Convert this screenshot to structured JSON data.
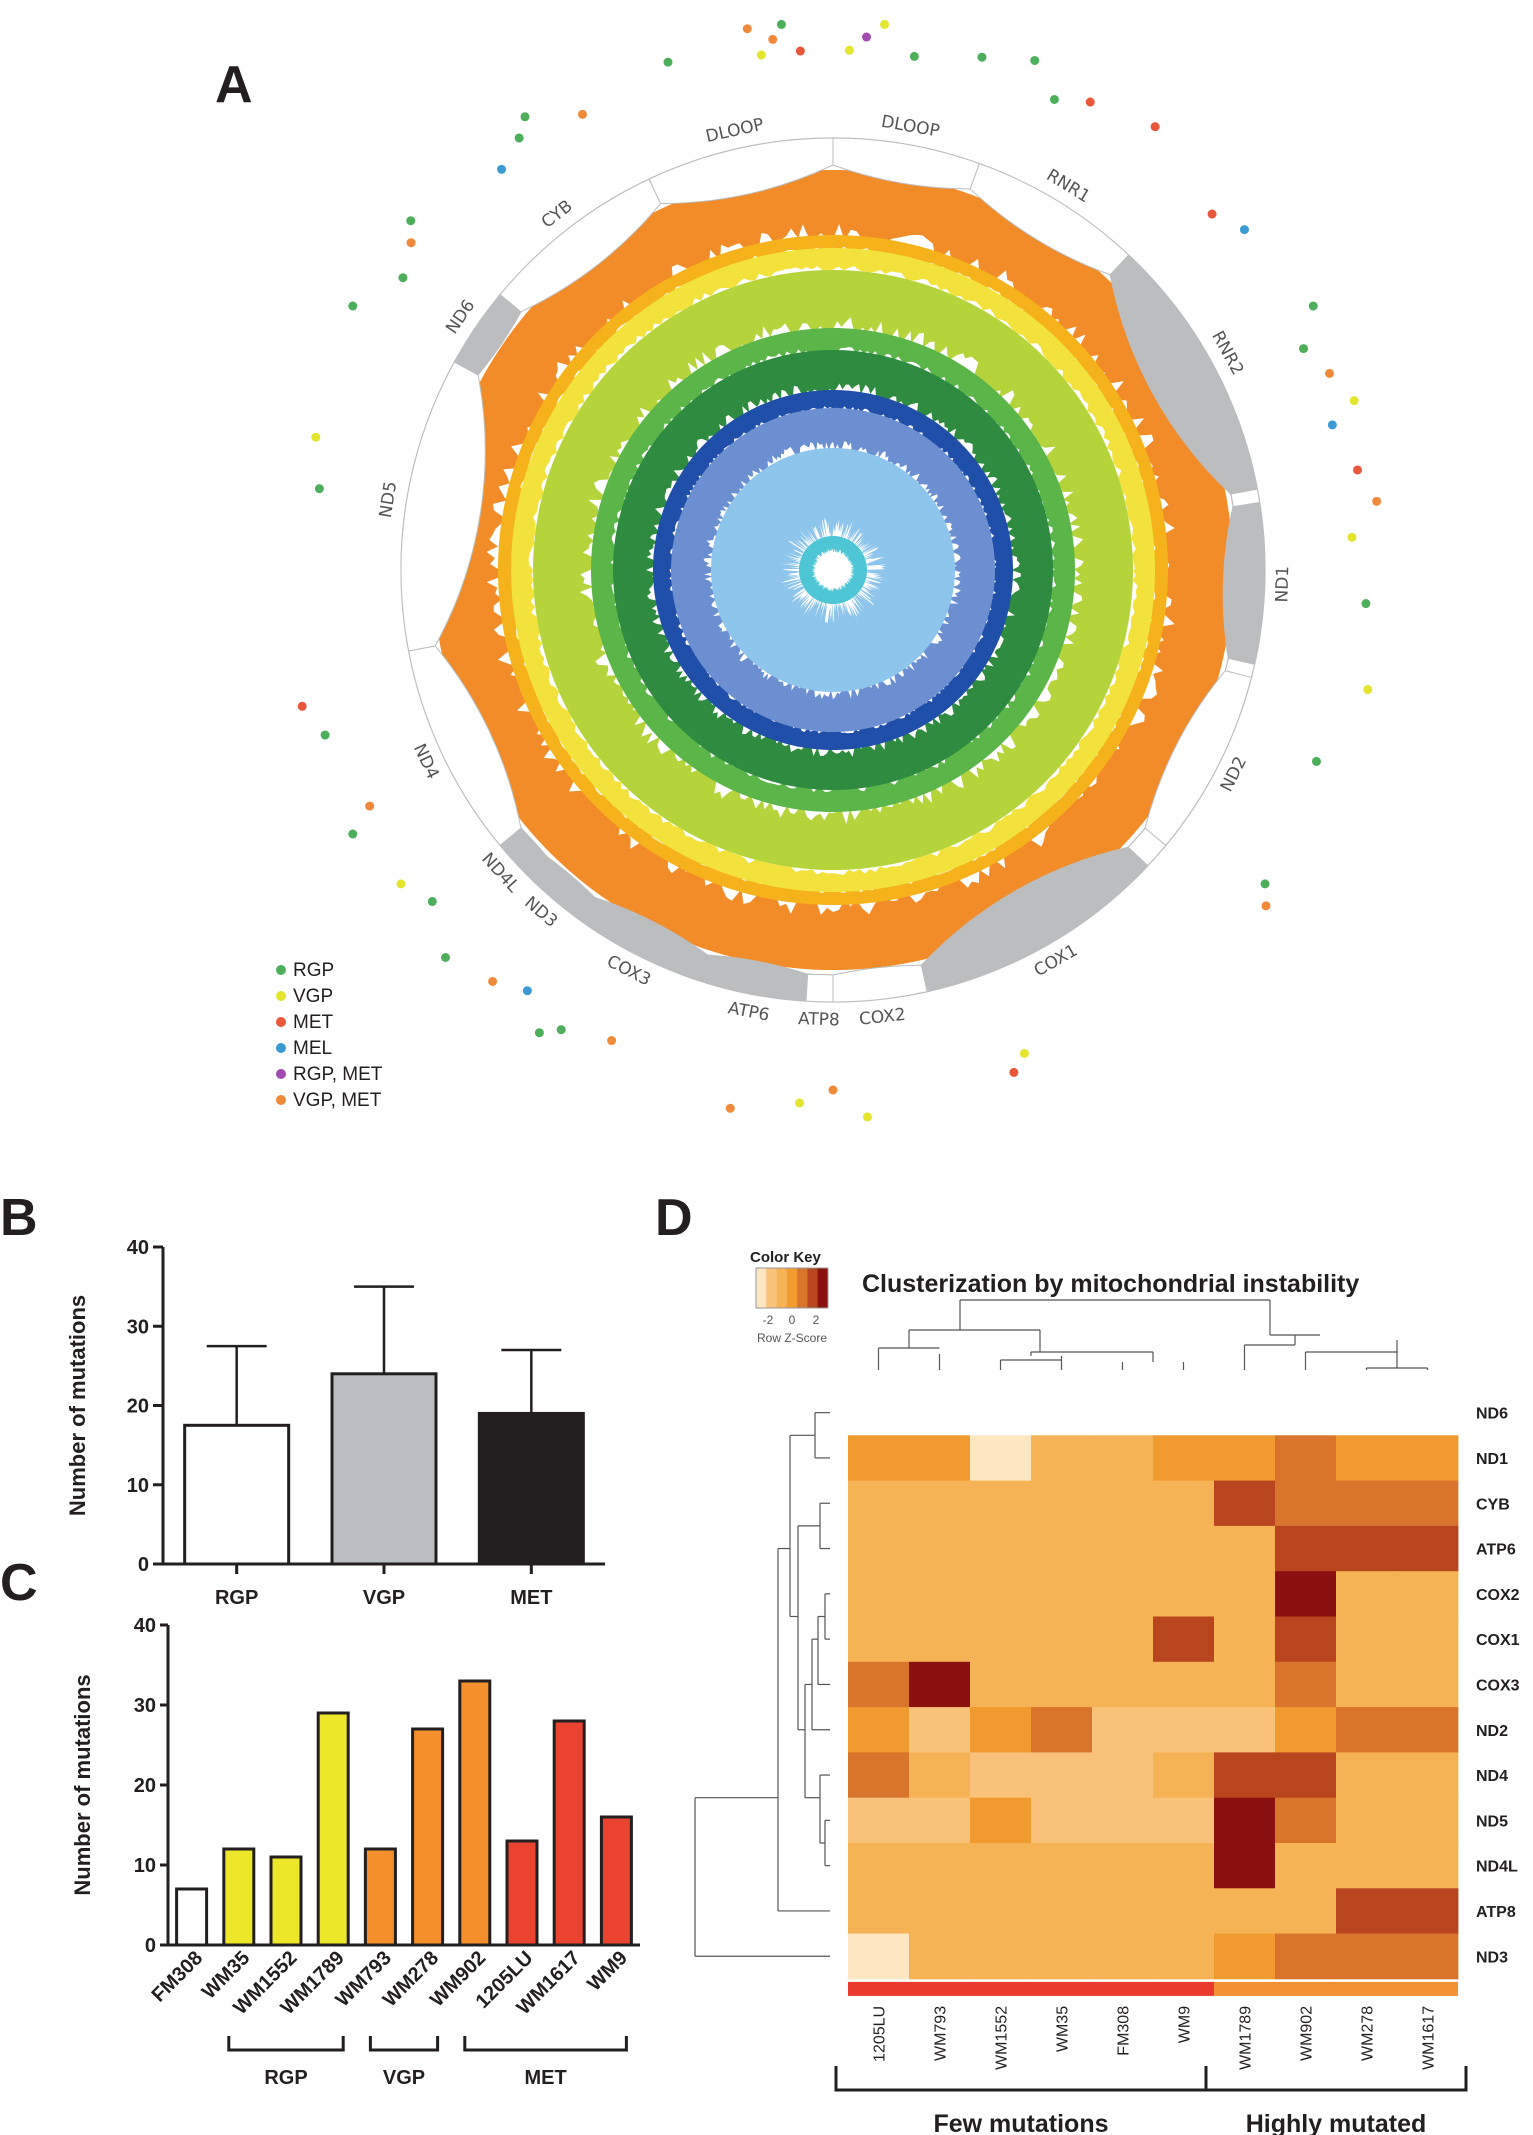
{
  "panel_labels": {
    "a": "A",
    "b": "B",
    "c": "C",
    "d": "D"
  },
  "colors": {
    "rgp": "#4daf5b",
    "vgp": "#e3e52e",
    "met": "#e9573a",
    "mel": "#3a9ad1",
    "rgp_met": "#a14ab0",
    "vgp_met": "#f08a3a",
    "ring_gray": "#bbbdbf",
    "ring_colors": [
      "#f28c28",
      "#f5b21b",
      "#f2e23b",
      "#b5d43b",
      "#5cb548",
      "#2e8b3f",
      "#1f4fa8",
      "#6b8fd1",
      "#8ec5ec",
      "#4fc6d6"
    ],
    "bar_b": [
      "#ffffff",
      "#bbbec2",
      "#231f20"
    ],
    "bar_c": [
      "#ffffff",
      "#ede72a",
      "#ede72a",
      "#ede72a",
      "#f4902b",
      "#f4902b",
      "#f4902b",
      "#ea4431",
      "#ea4431",
      "#ea4431"
    ],
    "heat_scale": [
      "#fde6c2",
      "#f8c27a",
      "#f6b355",
      "#f19a2e",
      "#d8742c",
      "#b9451e",
      "#8b1111"
    ],
    "few_bar": "#ea3a2e",
    "high_bar": "#f59135"
  },
  "chart_data": [
    {
      "panel": "A",
      "type": "circos",
      "genes": [
        {
          "name": "DLOOP",
          "start": 0,
          "end": 0.055,
          "filled": false
        },
        {
          "name": "RNR1",
          "start": 0.055,
          "end": 0.12,
          "filled": false
        },
        {
          "name": "RNR2",
          "start": 0.12,
          "end": 0.22,
          "filled": true
        },
        {
          "name": "ND1",
          "start": 0.225,
          "end": 0.285,
          "filled": true
        },
        {
          "name": "ND2",
          "start": 0.29,
          "end": 0.36,
          "filled": false
        },
        {
          "name": "COX1",
          "start": 0.37,
          "end": 0.465,
          "filled": true
        },
        {
          "name": "COX2",
          "start": 0.465,
          "end": 0.5,
          "filled": false
        },
        {
          "name": "ATP8",
          "start": 0.5,
          "end": 0.51,
          "filled": false
        },
        {
          "name": "ATP6",
          "start": 0.51,
          "end": 0.55,
          "filled": true
        },
        {
          "name": "COX3",
          "start": 0.55,
          "end": 0.6,
          "filled": true
        },
        {
          "name": "ND3",
          "start": 0.6,
          "end": 0.625,
          "filled": true
        },
        {
          "name": "ND4L",
          "start": 0.625,
          "end": 0.64,
          "filled": true
        },
        {
          "name": "ND4",
          "start": 0.64,
          "end": 0.72,
          "filled": false
        },
        {
          "name": "ND5",
          "start": 0.72,
          "end": 0.83,
          "filled": false
        },
        {
          "name": "ND6",
          "start": 0.83,
          "end": 0.86,
          "filled": true
        },
        {
          "name": "CYB",
          "start": 0.86,
          "end": 0.93,
          "filled": false
        },
        {
          "name": "DLOOP",
          "start": 0.93,
          "end": 1.0,
          "filled": false
        }
      ],
      "legend": [
        {
          "label": "RGP",
          "color": "#4daf5b"
        },
        {
          "label": "VGP",
          "color": "#e3e52e"
        },
        {
          "label": "MET",
          "color": "#e9573a"
        },
        {
          "label": "MEL",
          "color": "#3a9ad1"
        },
        {
          "label": "RGP, MET",
          "color": "#a14ab0"
        },
        {
          "label": "VGP, MET",
          "color": "#f08a3a"
        }
      ],
      "mutations": [
        {
          "pos": 0.005,
          "cls": "VGP"
        },
        {
          "pos": 0.01,
          "cls": "RGP, MET"
        },
        {
          "pos": 0.015,
          "cls": "VGP"
        },
        {
          "pos": 0.025,
          "cls": "RGP"
        },
        {
          "pos": 0.045,
          "cls": "RGP"
        },
        {
          "pos": 0.06,
          "cls": "RGP"
        },
        {
          "pos": 0.07,
          "cls": "RGP"
        },
        {
          "pos": 0.08,
          "cls": "MET"
        },
        {
          "pos": 0.1,
          "cls": "MET"
        },
        {
          "pos": 0.13,
          "cls": "MET"
        },
        {
          "pos": 0.14,
          "cls": "MEL"
        },
        {
          "pos": 0.17,
          "cls": "RGP"
        },
        {
          "pos": 0.18,
          "cls": "RGP"
        },
        {
          "pos": 0.19,
          "cls": "VGP, MET"
        },
        {
          "pos": 0.2,
          "cls": "VGP"
        },
        {
          "pos": 0.205,
          "cls": "MEL"
        },
        {
          "pos": 0.22,
          "cls": "MET"
        },
        {
          "pos": 0.23,
          "cls": "VGP, MET"
        },
        {
          "pos": 0.24,
          "cls": "VGP"
        },
        {
          "pos": 0.26,
          "cls": "RGP"
        },
        {
          "pos": 0.285,
          "cls": "VGP"
        },
        {
          "pos": 0.31,
          "cls": "RGP"
        },
        {
          "pos": 0.35,
          "cls": "RGP"
        },
        {
          "pos": 0.355,
          "cls": "VGP, MET"
        },
        {
          "pos": 0.44,
          "cls": "VGP"
        },
        {
          "pos": 0.445,
          "cls": "MET"
        },
        {
          "pos": 0.49,
          "cls": "VGP"
        },
        {
          "pos": 0.5,
          "cls": "VGP, MET"
        },
        {
          "pos": 0.51,
          "cls": "VGP"
        },
        {
          "pos": 0.53,
          "cls": "VGP, MET"
        },
        {
          "pos": 0.57,
          "cls": "VGP, MET"
        },
        {
          "pos": 0.585,
          "cls": "RGP"
        },
        {
          "pos": 0.59,
          "cls": "RGP"
        },
        {
          "pos": 0.6,
          "cls": "MEL"
        },
        {
          "pos": 0.61,
          "cls": "VGP, MET"
        },
        {
          "pos": 0.625,
          "cls": "RGP"
        },
        {
          "pos": 0.64,
          "cls": "RGP"
        },
        {
          "pos": 0.65,
          "cls": "VGP"
        },
        {
          "pos": 0.67,
          "cls": "RGP"
        },
        {
          "pos": 0.675,
          "cls": "VGP, MET"
        },
        {
          "pos": 0.7,
          "cls": "RGP"
        },
        {
          "pos": 0.71,
          "cls": "MET"
        },
        {
          "pos": 0.775,
          "cls": "RGP"
        },
        {
          "pos": 0.79,
          "cls": "VGP"
        },
        {
          "pos": 0.83,
          "cls": "RGP"
        },
        {
          "pos": 0.845,
          "cls": "RGP"
        },
        {
          "pos": 0.855,
          "cls": "VGP, MET"
        },
        {
          "pos": 0.86,
          "cls": "RGP"
        },
        {
          "pos": 0.89,
          "cls": "MEL"
        },
        {
          "pos": 0.9,
          "cls": "RGP"
        },
        {
          "pos": 0.905,
          "cls": "RGP"
        },
        {
          "pos": 0.92,
          "cls": "VGP, MET"
        },
        {
          "pos": 0.95,
          "cls": "RGP"
        },
        {
          "pos": 0.975,
          "cls": "VGP, MET"
        },
        {
          "pos": 0.978,
          "cls": "VGP"
        },
        {
          "pos": 0.982,
          "cls": "VGP, MET"
        },
        {
          "pos": 0.985,
          "cls": "RGP"
        },
        {
          "pos": 0.99,
          "cls": "MET"
        }
      ]
    },
    {
      "panel": "B",
      "type": "bar",
      "categories": [
        "RGP",
        "VGP",
        "MET"
      ],
      "values": [
        17.5,
        24,
        19
      ],
      "error_upper": [
        27.5,
        35,
        27
      ],
      "ylabel": "Number of mutations",
      "ylim": [
        0,
        40
      ],
      "yticks": [
        0,
        10,
        20,
        30,
        40
      ]
    },
    {
      "panel": "C",
      "type": "bar",
      "categories": [
        "FM308",
        "WM35",
        "WM1552",
        "WM1789",
        "WM793",
        "WM278",
        "WM902",
        "1205LU",
        "WM1617",
        "WM9"
      ],
      "values": [
        7,
        12,
        11,
        29,
        12,
        27,
        33,
        13,
        28,
        16
      ],
      "groups": [
        {
          "label": "RGP",
          "from": 1,
          "to": 3
        },
        {
          "label": "VGP",
          "from": 4,
          "to": 5
        },
        {
          "label": "MET",
          "from": 6,
          "to": 9
        }
      ],
      "ylabel": "Number of mutations",
      "ylim": [
        0,
        40
      ],
      "yticks": [
        0,
        10,
        20,
        30,
        40
      ]
    },
    {
      "panel": "D",
      "type": "heatmap",
      "title": "Clusterization by  mitochondrial instability",
      "color_key": {
        "title": "Color Key",
        "ticks": [
          "-2",
          "0",
          "2"
        ],
        "label": "Row Z-Score"
      },
      "columns": [
        "1205LU",
        "WM793",
        "WM1552",
        "WM35",
        "FM308",
        "WM9",
        "WM1789",
        "WM902",
        "WM278",
        "WM1617"
      ],
      "rows": [
        "ND6",
        "ND1",
        "CYB",
        "ATP6",
        "COX2",
        "COX1",
        "COX3",
        "ND2",
        "ND4",
        "ND5",
        "ND4L",
        "ATP8",
        "ND3"
      ],
      "values": [
        [
          null,
          null,
          null,
          null,
          null,
          null,
          null,
          null,
          null,
          null
        ],
        [
          3,
          3,
          0,
          2,
          2,
          3,
          3,
          4,
          3,
          3
        ],
        [
          2,
          2,
          2,
          2,
          2,
          2,
          5,
          4,
          4,
          4
        ],
        [
          2,
          2,
          2,
          2,
          2,
          2,
          2,
          5,
          5,
          5
        ],
        [
          2,
          2,
          2,
          2,
          2,
          2,
          2,
          6,
          2,
          2
        ],
        [
          2,
          2,
          2,
          2,
          2,
          5,
          2,
          5,
          2,
          2
        ],
        [
          4,
          6,
          2,
          2,
          2,
          2,
          2,
          4,
          2,
          2
        ],
        [
          3,
          1,
          3,
          4,
          1,
          1,
          1,
          3,
          4,
          4
        ],
        [
          4,
          2,
          1,
          1,
          1,
          2,
          5,
          5,
          2,
          2
        ],
        [
          1,
          1,
          3,
          1,
          1,
          1,
          6,
          4,
          2,
          2
        ],
        [
          2,
          2,
          2,
          2,
          2,
          2,
          6,
          2,
          2,
          2
        ],
        [
          2,
          2,
          2,
          2,
          2,
          2,
          2,
          2,
          5,
          5
        ],
        [
          0,
          2,
          2,
          2,
          2,
          2,
          3,
          4,
          4,
          4
        ]
      ],
      "groups": [
        {
          "label": "Few mutations",
          "from": 0,
          "to": 5
        },
        {
          "label": "Highly mutated",
          "from": 6,
          "to": 9
        }
      ]
    }
  ]
}
